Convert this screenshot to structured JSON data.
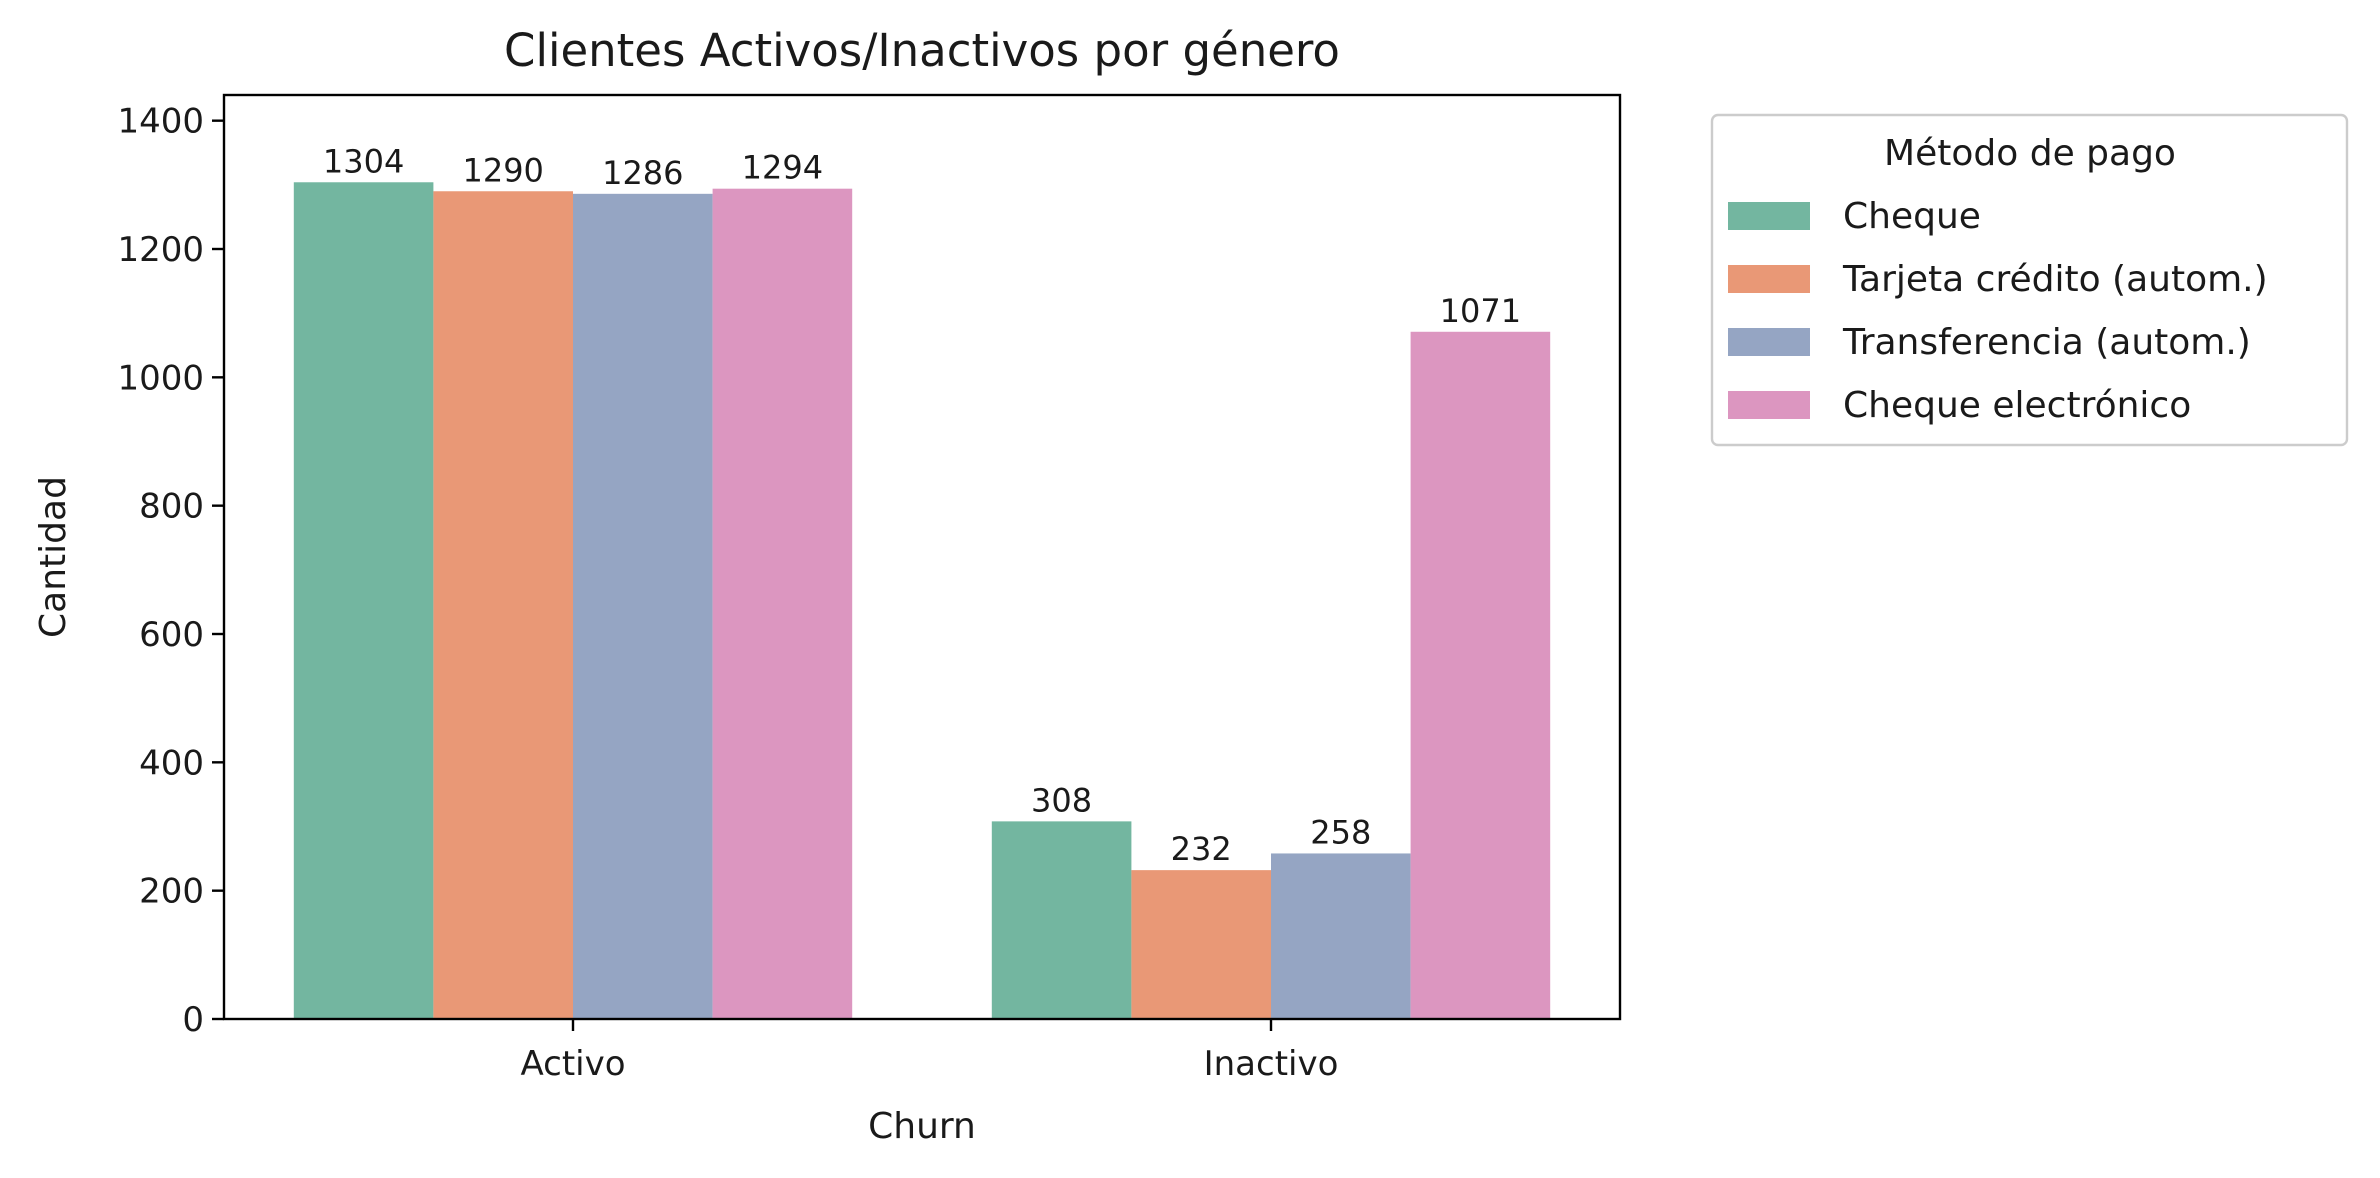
{
  "chart_data": {
    "type": "bar",
    "title": "Clientes Activos/Inactivos por género",
    "xlabel": "Churn",
    "ylabel": "Cantidad",
    "categories": [
      "Activo",
      "Inactivo"
    ],
    "ylim": [
      0,
      1440
    ],
    "yticks": [
      0,
      200,
      400,
      600,
      800,
      1000,
      1200,
      1400
    ],
    "grid": false,
    "legend": {
      "title": "Método de pago",
      "placement": "outside-top-right"
    },
    "series": [
      {
        "name": "Cheque",
        "color": "#73b6a0",
        "values": [
          1304,
          308
        ]
      },
      {
        "name": "Tarjeta crédito (autom.)",
        "color": "#e99876",
        "values": [
          1290,
          232
        ]
      },
      {
        "name": "Transferencia (autom.)",
        "color": "#95a5c3",
        "values": [
          1286,
          258
        ]
      },
      {
        "name": "Cheque electrónico",
        "color": "#dc96c0",
        "values": [
          1294,
          1071
        ]
      }
    ]
  }
}
